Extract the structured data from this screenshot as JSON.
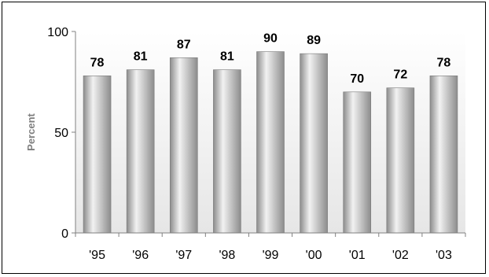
{
  "chart_data": {
    "type": "bar",
    "categories": [
      "'95",
      "'96",
      "'97",
      "'98",
      "'99",
      "'00",
      "'01",
      "'02",
      "'03"
    ],
    "values": [
      78,
      81,
      87,
      81,
      90,
      89,
      70,
      72,
      78
    ],
    "data_labels": [
      "78",
      "81",
      "87",
      "81",
      "90",
      "89",
      "70",
      "72",
      "78"
    ],
    "title": "",
    "xlabel": "",
    "ylabel": "Percent",
    "ylim": [
      0,
      100
    ],
    "yticks": [
      0,
      50,
      100
    ],
    "ytick_labels": [
      "0",
      "50",
      "100"
    ],
    "grid": false,
    "legend": "none",
    "colors": {
      "bar_dark": "#8c8c8c",
      "bar_light": "#f2f2f2",
      "plot_bg_top": "#ffffff",
      "plot_bg_bottom": "#e6e6e6",
      "axis": "#808080",
      "ylabel": "#7f7f7f"
    }
  }
}
